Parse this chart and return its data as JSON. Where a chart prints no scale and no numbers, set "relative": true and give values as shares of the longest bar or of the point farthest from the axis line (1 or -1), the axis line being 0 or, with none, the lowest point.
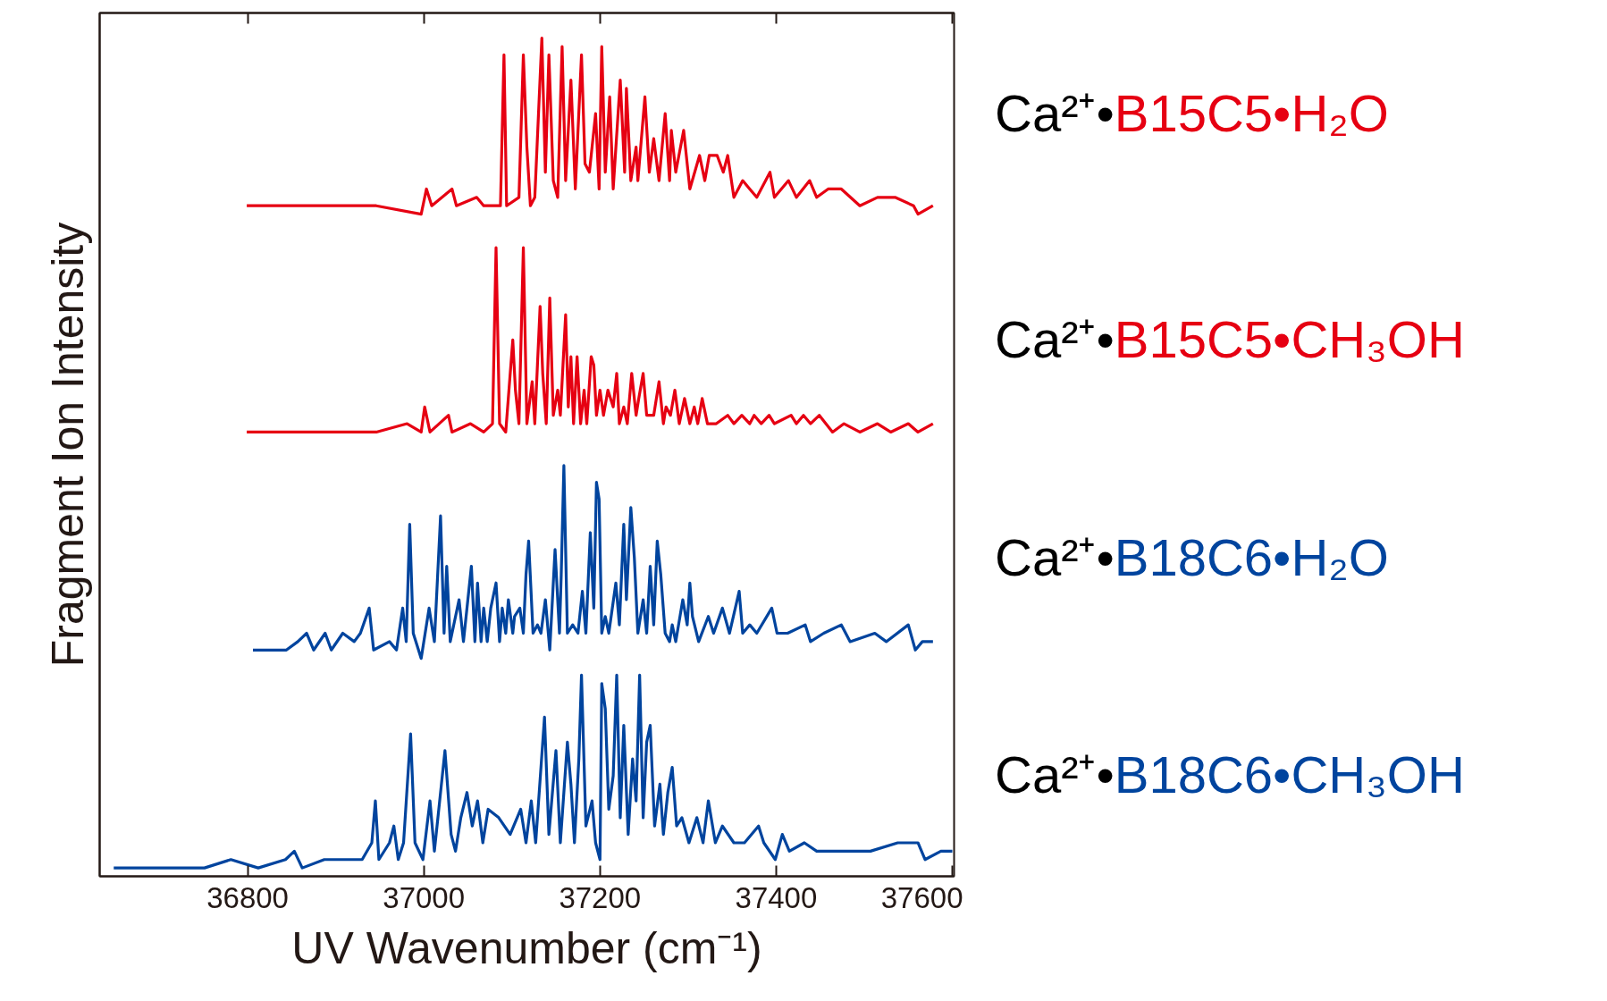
{
  "chart_data": {
    "type": "line",
    "relative": true,
    "tick_labels": "x",
    "xlabel": "UV Wavenumber (cm⁻¹)",
    "ylabel": "Fragment Ion Intensity",
    "xlim": [
      36632,
      37602
    ],
    "xticks": [
      36800,
      37000,
      37200,
      37400,
      37600
    ],
    "series": [
      {
        "name": "Ca²⁺•B15C5•H₂O",
        "color": "#e60012",
        "x": [
          36799,
          36844,
          36895,
          36946,
          36997,
          37003,
          37009,
          37032,
          37037,
          37060,
          37068,
          37078,
          37087,
          37091,
          37094,
          37108,
          37113,
          37117,
          37121,
          37126,
          37134,
          37138,
          37142,
          37147,
          37152,
          37157,
          37161,
          37167,
          37172,
          37179,
          37183,
          37188,
          37195,
          37199,
          37202,
          37206,
          37211,
          37215,
          37223,
          37228,
          37230,
          37235,
          37241,
          37243,
          37251,
          37256,
          37261,
          37267,
          37274,
          37279,
          37281,
          37286,
          37295,
          37302,
          37313,
          37319,
          37324,
          37333,
          37340,
          37345,
          37352,
          37362,
          37370,
          37378,
          37393,
          37398,
          37414,
          37423,
          37438,
          37446,
          37459,
          37474,
          37495,
          37515,
          37535,
          37556,
          37561,
          37578
        ],
        "values": [
          0.8,
          0.8,
          0.8,
          0.8,
          0.79,
          0.82,
          0.8,
          0.82,
          0.8,
          0.81,
          0.8,
          0.8,
          0.8,
          0.98,
          0.8,
          0.81,
          0.98,
          0.87,
          0.8,
          0.81,
          1.0,
          0.84,
          0.98,
          0.83,
          0.81,
          0.99,
          0.83,
          0.95,
          0.82,
          0.98,
          0.85,
          0.84,
          0.91,
          0.82,
          0.99,
          0.84,
          0.93,
          0.82,
          0.95,
          0.84,
          0.94,
          0.83,
          0.87,
          0.83,
          0.93,
          0.84,
          0.88,
          0.83,
          0.91,
          0.83,
          0.89,
          0.84,
          0.89,
          0.82,
          0.86,
          0.83,
          0.86,
          0.86,
          0.84,
          0.86,
          0.81,
          0.83,
          0.82,
          0.81,
          0.84,
          0.81,
          0.83,
          0.81,
          0.83,
          0.81,
          0.82,
          0.82,
          0.8,
          0.81,
          0.81,
          0.8,
          0.79,
          0.8
        ]
      },
      {
        "name": "Ca²⁺•B15C5•CH₃OH",
        "color": "#e60012",
        "x": [
          36799,
          36844,
          36895,
          36946,
          36981,
          36997,
          37001,
          37007,
          37028,
          37032,
          37053,
          37068,
          37078,
          37082,
          37086,
          37093,
          37101,
          37104,
          37108,
          37113,
          37117,
          37123,
          37126,
          37129,
          37132,
          37135,
          37139,
          37143,
          37147,
          37152,
          37155,
          37158,
          37161,
          37164,
          37167,
          37170,
          37174,
          37178,
          37182,
          37185,
          37190,
          37193,
          37196,
          37200,
          37204,
          37209,
          37215,
          37219,
          37222,
          37227,
          37231,
          37236,
          37241,
          37244,
          37249,
          37253,
          37261,
          37267,
          37272,
          37275,
          37280,
          37285,
          37290,
          37296,
          37302,
          37307,
          37311,
          37316,
          37322,
          37332,
          37345,
          37352,
          37361,
          37370,
          37375,
          37383,
          37392,
          37398,
          37417,
          37423,
          37431,
          37439,
          37449,
          37464,
          37477,
          37495,
          37515,
          37530,
          37550,
          37561,
          37578
        ],
        "values": [
          0.53,
          0.53,
          0.53,
          0.53,
          0.54,
          0.53,
          0.56,
          0.53,
          0.55,
          0.53,
          0.54,
          0.53,
          0.54,
          0.75,
          0.54,
          0.53,
          0.64,
          0.58,
          0.54,
          0.75,
          0.54,
          0.59,
          0.54,
          0.61,
          0.68,
          0.6,
          0.54,
          0.69,
          0.55,
          0.58,
          0.55,
          0.61,
          0.67,
          0.56,
          0.62,
          0.54,
          0.62,
          0.54,
          0.58,
          0.54,
          0.62,
          0.61,
          0.55,
          0.58,
          0.55,
          0.58,
          0.56,
          0.6,
          0.54,
          0.56,
          0.54,
          0.6,
          0.55,
          0.57,
          0.6,
          0.55,
          0.55,
          0.59,
          0.54,
          0.56,
          0.55,
          0.58,
          0.54,
          0.57,
          0.54,
          0.56,
          0.54,
          0.57,
          0.54,
          0.54,
          0.55,
          0.54,
          0.55,
          0.54,
          0.55,
          0.54,
          0.55,
          0.54,
          0.55,
          0.54,
          0.55,
          0.54,
          0.55,
          0.53,
          0.54,
          0.53,
          0.54,
          0.53,
          0.54,
          0.53,
          0.54
        ]
      },
      {
        "name": "Ca²⁺•B18C6•H₂O",
        "color": "#00449e",
        "x": [
          36806,
          36824,
          36844,
          36857,
          36867,
          36875,
          36888,
          36895,
          36908,
          36921,
          36928,
          36938,
          36943,
          36961,
          36969,
          36976,
          36980,
          36984,
          36988,
          36997,
          37006,
          37012,
          37019,
          37023,
          37026,
          37030,
          37040,
          37045,
          37054,
          37058,
          37061,
          37065,
          37068,
          37072,
          37076,
          37082,
          37086,
          37089,
          37093,
          37096,
          37101,
          37103,
          37109,
          37113,
          37116,
          37119,
          37124,
          37129,
          37133,
          37138,
          37143,
          37149,
          37154,
          37156,
          37159,
          37163,
          37169,
          37175,
          37180,
          37184,
          37189,
          37193,
          37196,
          37199,
          37202,
          37206,
          37210,
          37218,
          37222,
          37227,
          37230,
          37235,
          37239,
          37243,
          37249,
          37253,
          37257,
          37261,
          37265,
          37269,
          37274,
          37279,
          37282,
          37286,
          37294,
          37299,
          37302,
          37305,
          37312,
          37323,
          37329,
          37339,
          37347,
          37358,
          37362,
          37370,
          37378,
          37395,
          37401,
          37413,
          37433,
          37439,
          37454,
          37474,
          37484,
          37512,
          37525,
          37550,
          37558,
          37566,
          37578
        ],
        "values": [
          0.27,
          0.27,
          0.27,
          0.28,
          0.29,
          0.27,
          0.29,
          0.27,
          0.29,
          0.28,
          0.29,
          0.32,
          0.27,
          0.28,
          0.27,
          0.32,
          0.28,
          0.42,
          0.29,
          0.26,
          0.32,
          0.28,
          0.43,
          0.29,
          0.37,
          0.28,
          0.33,
          0.28,
          0.37,
          0.28,
          0.35,
          0.28,
          0.32,
          0.28,
          0.32,
          0.35,
          0.28,
          0.32,
          0.29,
          0.33,
          0.29,
          0.31,
          0.32,
          0.29,
          0.36,
          0.4,
          0.29,
          0.3,
          0.29,
          0.33,
          0.27,
          0.39,
          0.29,
          0.36,
          0.49,
          0.29,
          0.3,
          0.29,
          0.34,
          0.29,
          0.41,
          0.32,
          0.47,
          0.45,
          0.29,
          0.31,
          0.29,
          0.35,
          0.3,
          0.42,
          0.33,
          0.44,
          0.38,
          0.29,
          0.33,
          0.29,
          0.37,
          0.3,
          0.4,
          0.36,
          0.29,
          0.28,
          0.3,
          0.28,
          0.33,
          0.3,
          0.35,
          0.31,
          0.28,
          0.31,
          0.29,
          0.32,
          0.29,
          0.34,
          0.29,
          0.3,
          0.29,
          0.32,
          0.29,
          0.29,
          0.3,
          0.28,
          0.29,
          0.3,
          0.28,
          0.29,
          0.28,
          0.3,
          0.27,
          0.28,
          0.28
        ]
      },
      {
        "name": "Ca²⁺•B18C6•CH₃OH",
        "color": "#00449e",
        "x": [
          36648,
          36676,
          36713,
          36751,
          36781,
          36812,
          36843,
          36853,
          36862,
          36887,
          36912,
          36930,
          36941,
          36945,
          36949,
          36961,
          36966,
          36971,
          36977,
          36985,
          36990,
          36999,
          37007,
          37012,
          37018,
          37024,
          37031,
          37036,
          37042,
          37049,
          37055,
          37061,
          37067,
          37073,
          37085,
          37098,
          37110,
          37116,
          37122,
          37127,
          37137,
          37142,
          37150,
          37155,
          37163,
          37167,
          37171,
          37176,
          37179,
          37184,
          37191,
          37195,
          37200,
          37202,
          37206,
          37210,
          37215,
          37219,
          37223,
          37227,
          37232,
          37237,
          37241,
          37245,
          37249,
          37253,
          37257,
          37262,
          37268,
          37272,
          37277,
          37282,
          37287,
          37293,
          37301,
          37310,
          37317,
          37323,
          37331,
          37339,
          37352,
          37364,
          37380,
          37386,
          37399,
          37407,
          37415,
          37432,
          37446,
          37476,
          37507,
          37538,
          37561,
          37569,
          37587,
          37600
        ],
        "values": [
          0.01,
          0.01,
          0.01,
          0.01,
          0.02,
          0.01,
          0.02,
          0.03,
          0.01,
          0.02,
          0.02,
          0.02,
          0.04,
          0.09,
          0.02,
          0.04,
          0.06,
          0.02,
          0.04,
          0.17,
          0.04,
          0.02,
          0.09,
          0.03,
          0.09,
          0.15,
          0.05,
          0.03,
          0.07,
          0.1,
          0.06,
          0.09,
          0.04,
          0.08,
          0.07,
          0.05,
          0.08,
          0.04,
          0.09,
          0.04,
          0.19,
          0.05,
          0.15,
          0.04,
          0.16,
          0.11,
          0.04,
          0.14,
          0.24,
          0.06,
          0.09,
          0.04,
          0.02,
          0.23,
          0.2,
          0.08,
          0.12,
          0.24,
          0.07,
          0.18,
          0.05,
          0.14,
          0.09,
          0.24,
          0.07,
          0.16,
          0.18,
          0.06,
          0.11,
          0.05,
          0.1,
          0.13,
          0.06,
          0.07,
          0.04,
          0.07,
          0.04,
          0.09,
          0.04,
          0.06,
          0.04,
          0.04,
          0.06,
          0.04,
          0.02,
          0.05,
          0.03,
          0.04,
          0.03,
          0.03,
          0.03,
          0.04,
          0.04,
          0.02,
          0.03,
          0.03
        ]
      }
    ]
  }
}
